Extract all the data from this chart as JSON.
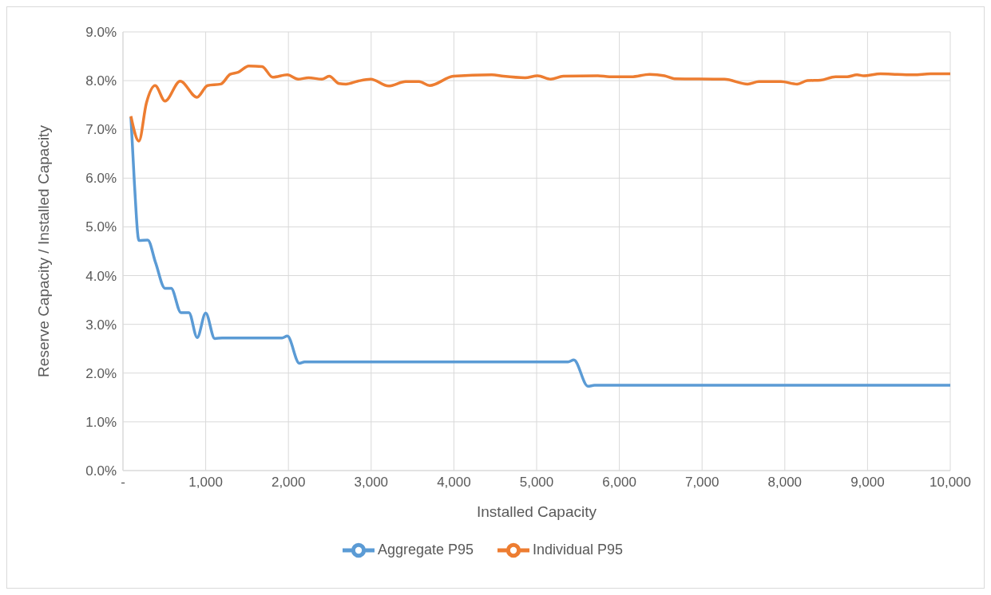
{
  "chart_data": {
    "type": "line",
    "xlabel": "Installed Capacity",
    "ylabel": "Reserve Capacity / Installed Capacity",
    "xlim": [
      0,
      10000
    ],
    "xticks": [
      {
        "value": 0,
        "label": "-"
      },
      {
        "value": 1000,
        "label": "1,000"
      },
      {
        "value": 2000,
        "label": "2,000"
      },
      {
        "value": 3000,
        "label": "3,000"
      },
      {
        "value": 4000,
        "label": "4,000"
      },
      {
        "value": 5000,
        "label": "5,000"
      },
      {
        "value": 6000,
        "label": "6,000"
      },
      {
        "value": 7000,
        "label": "7,000"
      },
      {
        "value": 8000,
        "label": "8,000"
      },
      {
        "value": 9000,
        "label": "9,000"
      },
      {
        "value": 10000,
        "label": "10,000"
      }
    ],
    "ylim": [
      0,
      9
    ],
    "yticks": [
      {
        "value": 0,
        "label": "0.0%"
      },
      {
        "value": 1,
        "label": "1.0%"
      },
      {
        "value": 2,
        "label": "2.0%"
      },
      {
        "value": 3,
        "label": "3.0%"
      },
      {
        "value": 4,
        "label": "4.0%"
      },
      {
        "value": 5,
        "label": "5.0%"
      },
      {
        "value": 6,
        "label": "6.0%"
      },
      {
        "value": 7,
        "label": "7.0%"
      },
      {
        "value": 8,
        "label": "8.0%"
      },
      {
        "value": 9,
        "label": "9.0%"
      }
    ],
    "grid": true,
    "legend": "bottom",
    "marker": "none",
    "line_style": "solid",
    "series": [
      {
        "name": "Aggregate P95",
        "color": "#5b9bd5",
        "x": [
          96,
          138,
          193,
          299,
          395,
          508,
          582,
          701,
          797,
          897,
          1000,
          1109,
          1199,
          1923,
          1987,
          2132,
          2196,
          5380,
          5450,
          5620,
          5700,
          10000
        ],
        "values": [
          7.25,
          5.9,
          4.72,
          4.73,
          4.26,
          3.74,
          3.74,
          3.24,
          3.24,
          2.73,
          3.23,
          2.71,
          2.72,
          2.72,
          2.76,
          2.2,
          2.23,
          2.23,
          2.27,
          1.73,
          1.75,
          1.75
        ]
      },
      {
        "name": "Individual P95",
        "color": "#ed7d31",
        "x": [
          96,
          193,
          283,
          389,
          508,
          691,
          894,
          1023,
          1183,
          1296,
          1392,
          1521,
          1682,
          1810,
          1987,
          2116,
          2244,
          2405,
          2492,
          2614,
          2695,
          2839,
          2994,
          3209,
          3418,
          3579,
          3707,
          3995,
          4458,
          4599,
          4860,
          5012,
          5171,
          5322,
          5740,
          5880,
          6145,
          6366,
          6546,
          6665,
          7269,
          7550,
          7687,
          7952,
          8149,
          8273,
          8434,
          8612,
          8755,
          8873,
          8954,
          9157,
          9358,
          9559,
          9760,
          9940,
          10000
        ],
        "values": [
          7.27,
          6.76,
          7.54,
          7.9,
          7.58,
          7.99,
          7.66,
          7.9,
          7.93,
          8.13,
          8.17,
          8.3,
          8.29,
          8.07,
          8.12,
          8.03,
          8.06,
          8.03,
          8.09,
          7.94,
          7.93,
          7.99,
          8.03,
          7.89,
          7.98,
          7.98,
          7.9,
          8.09,
          8.12,
          8.09,
          8.06,
          8.1,
          8.03,
          8.09,
          8.1,
          8.08,
          8.08,
          8.13,
          8.1,
          8.04,
          8.03,
          7.93,
          7.98,
          7.98,
          7.93,
          8.0,
          8.01,
          8.08,
          8.08,
          8.12,
          8.1,
          8.14,
          8.13,
          8.12,
          8.14,
          8.14,
          8.14
        ]
      }
    ]
  }
}
